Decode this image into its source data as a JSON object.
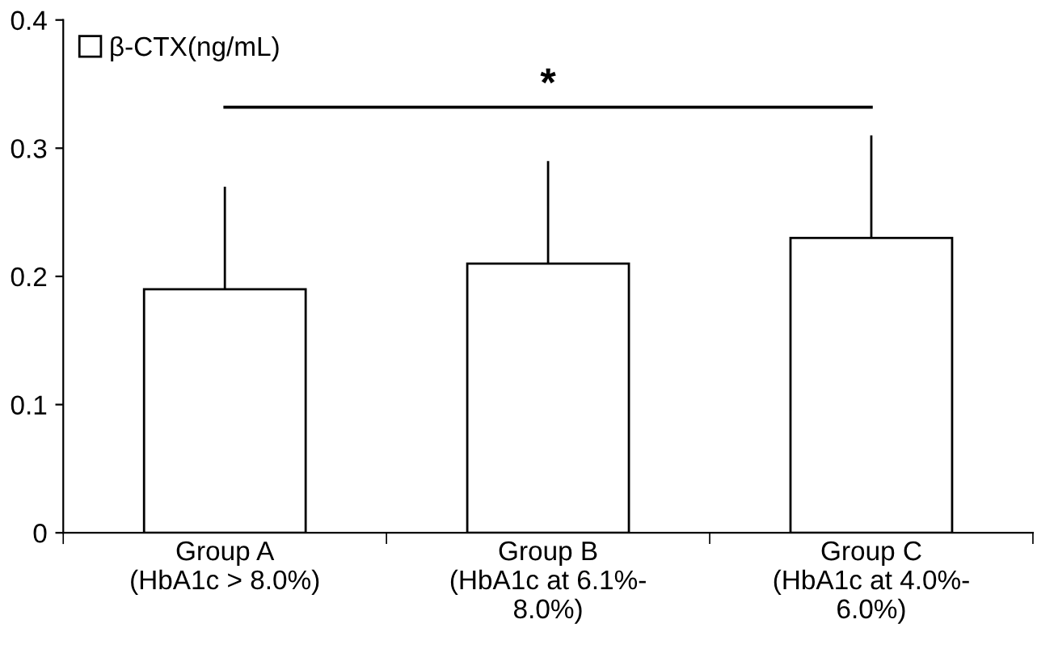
{
  "chart_data": {
    "type": "bar",
    "categories": [
      "Group A\n(HbA1c > 8.0%)",
      "Group B\n(HbA1c at 6.1%-\n8.0%)",
      "Group C\n(HbA1c at 4.0%-\n6.0%)"
    ],
    "series": [
      {
        "name": "β-CTX(ng/mL)",
        "color": "#ffffff",
        "values": [
          0.19,
          0.21,
          0.23
        ],
        "errors": [
          [
            0.19,
            0.27
          ],
          [
            0.21,
            0.29
          ],
          [
            0.23,
            0.31
          ]
        ]
      }
    ],
    "ylim": [
      0,
      0.4
    ],
    "yticks": [
      0,
      0.1,
      0.2,
      0.3,
      0.4
    ],
    "grid": false,
    "legend": "top left",
    "annotations": [
      "*"
    ]
  }
}
